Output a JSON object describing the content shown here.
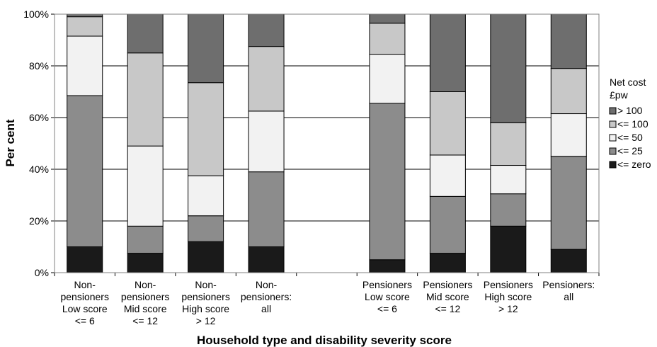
{
  "chart_data": {
    "type": "bar",
    "stacked": true,
    "xlabel": "Household type and disability severity score",
    "ylabel": "Per cent",
    "ylim": [
      0,
      100
    ],
    "yticks": [
      "0%",
      "20%",
      "40%",
      "60%",
      "80%",
      "100%"
    ],
    "grid": true,
    "legend_position": "right",
    "legend_title": [
      "Net cost",
      "£pw"
    ],
    "categories": [
      [
        "Non-",
        "pensioners",
        "Low score",
        "<= 6"
      ],
      [
        "Non-",
        "pensioners",
        "Mid score",
        "<= 12"
      ],
      [
        "Non-",
        "pensioners",
        "High score",
        "> 12"
      ],
      [
        "Non-",
        "pensioners:",
        "all"
      ],
      [],
      [
        "Pensioners",
        "Low score",
        "<= 6"
      ],
      [
        "Pensioners",
        "Mid score",
        "<= 12"
      ],
      [
        "Pensioners",
        "High score",
        "> 12"
      ],
      [
        "Pensioners:",
        "all"
      ]
    ],
    "series": [
      {
        "name": "<= zero",
        "color": "#1a1a1a",
        "values": [
          10,
          7.5,
          12,
          10,
          null,
          5,
          7.5,
          18,
          9
        ]
      },
      {
        "name": "<= 25",
        "color": "#8c8c8c",
        "values": [
          58.5,
          10.5,
          10,
          29,
          null,
          60.5,
          22,
          12.5,
          36
        ]
      },
      {
        "name": "<= 50",
        "color": "#f2f2f2",
        "values": [
          23,
          31,
          15.5,
          23.5,
          null,
          19,
          16,
          11,
          16.5
        ]
      },
      {
        "name": "<= 100",
        "color": "#c8c8c8",
        "values": [
          7.5,
          36,
          36,
          25,
          null,
          12,
          24.5,
          16.5,
          17.5
        ]
      },
      {
        "name": "> 100",
        "color": "#6e6e6e",
        "values": [
          1,
          15,
          26.5,
          12.5,
          null,
          3.5,
          30,
          42,
          21
        ]
      }
    ]
  }
}
